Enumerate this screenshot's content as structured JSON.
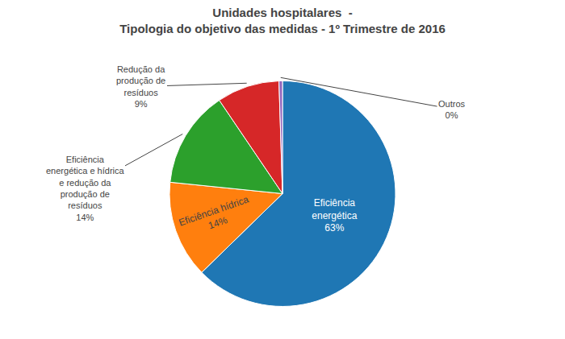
{
  "chart_data": {
    "type": "pie",
    "title": "Unidades hospitalares  -\nTipologia do objetivo das medidas - 1º Trimestre de 2016",
    "categories": [
      "Eficiência\nenergética",
      "Eficiência hídrica",
      "Eficiência\nenergética e hídrica\ne redução da\nprodução de\nresíduos",
      "Redução da\nprodução de\nresíduos",
      "Outros"
    ],
    "values": [
      63,
      14,
      14,
      9,
      0.5
    ],
    "value_labels": [
      "63%",
      "14%",
      "14%",
      "9%",
      "0%"
    ],
    "data_labels": true
  }
}
